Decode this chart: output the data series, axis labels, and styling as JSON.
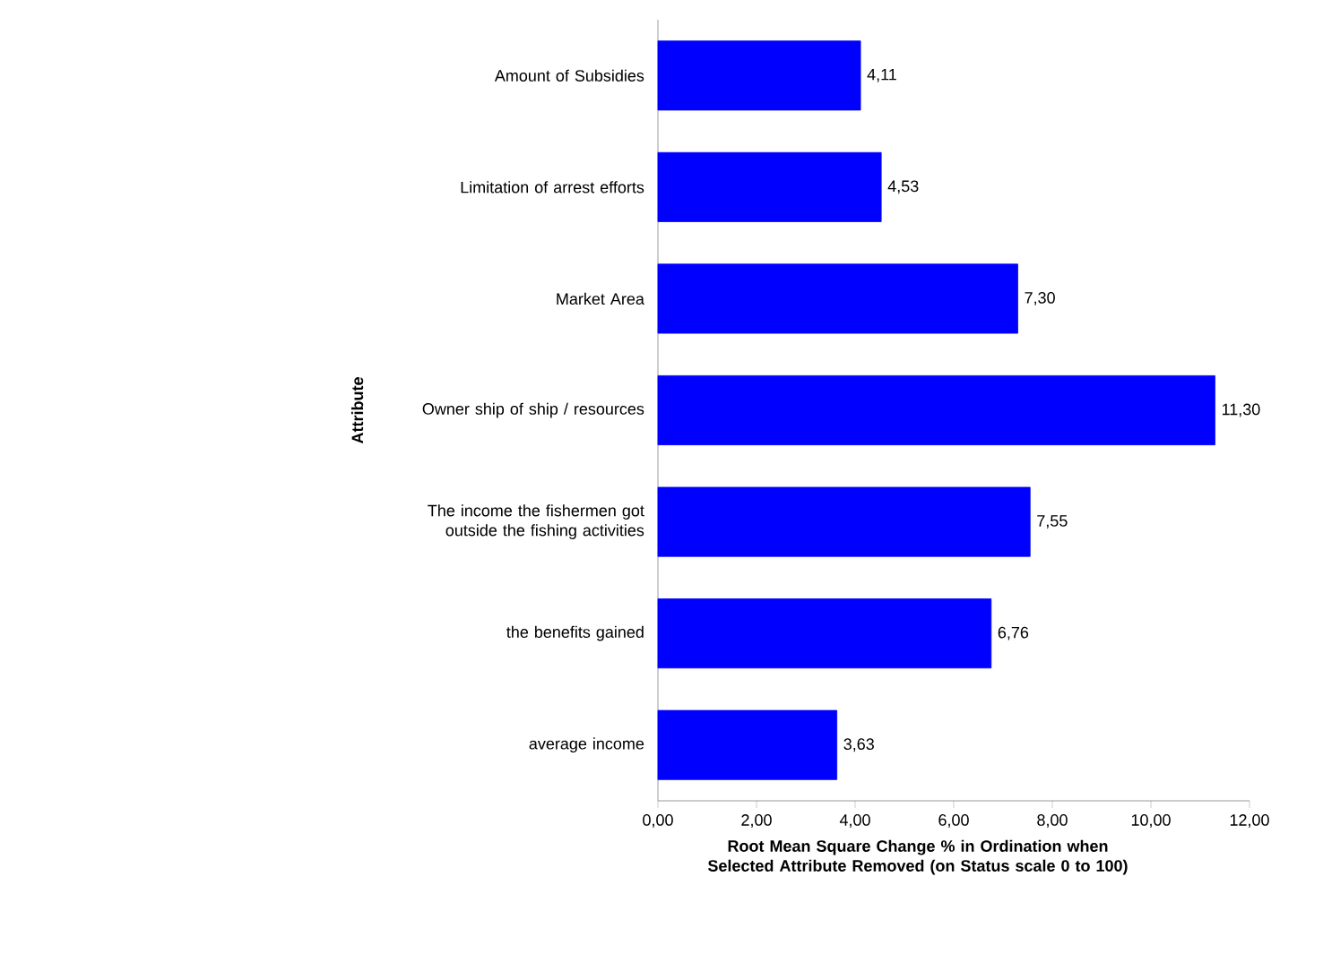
{
  "chart_data": {
    "type": "bar",
    "orientation": "horizontal",
    "xlabel": "Root Mean Square Change % in Ordination when Selected Attribute Removed (on Status scale 0 to 100)",
    "ylabel": "Attribute",
    "categories": [
      "Amount of Subsidies",
      "Limitation of arrest efforts",
      "Market Area",
      "Owner ship of ship / resources",
      "The income the fishermen got outside the fishing activities",
      "the benefits gained",
      "average income"
    ],
    "values": [
      4.11,
      4.53,
      7.3,
      11.3,
      7.55,
      6.76,
      3.63
    ],
    "value_labels": [
      "4,11",
      "4,53",
      "7,30",
      "11,30",
      "7,55",
      "6,76",
      "3,63"
    ],
    "color": "#0000ff",
    "xlim": [
      0,
      12
    ],
    "xticks": [
      {
        "value": 0,
        "label": "0,00"
      },
      {
        "value": 2,
        "label": "2,00"
      },
      {
        "value": 4,
        "label": "4,00"
      },
      {
        "value": 6,
        "label": "6,00"
      },
      {
        "value": 8,
        "label": "8,00"
      },
      {
        "value": 10,
        "label": "10,00"
      },
      {
        "value": 12,
        "label": "12,00"
      }
    ]
  }
}
